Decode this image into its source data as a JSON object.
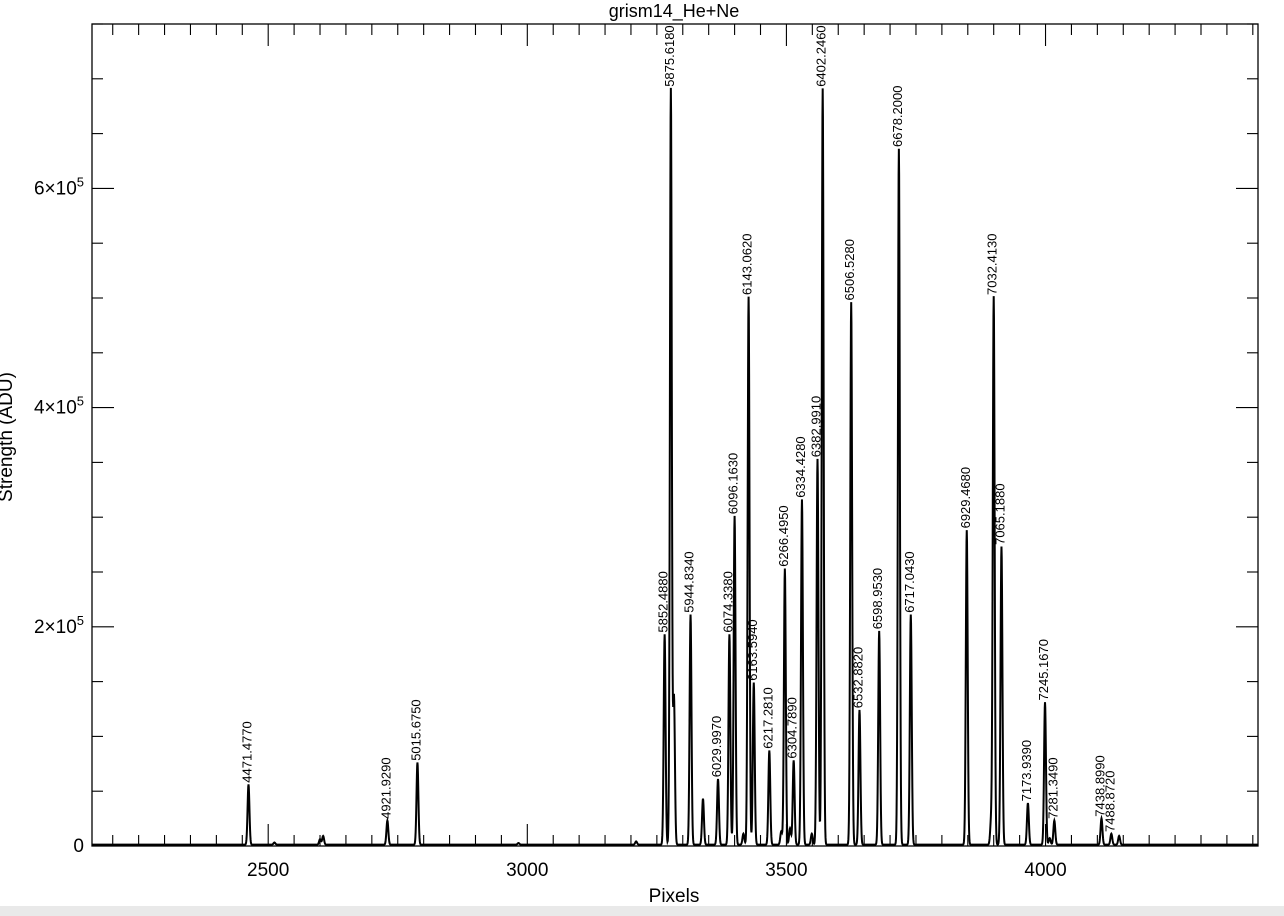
{
  "chart_data": {
    "type": "line",
    "title": "grism14_He+Ne",
    "xlabel": "Pixels",
    "ylabel": "Strength (ADU)",
    "xlim": [
      2160,
      4410
    ],
    "ylim": [
      0,
      750000
    ],
    "x_ticks": [
      {
        "value": 2500,
        "label": "2500"
      },
      {
        "value": 3000,
        "label": "3000"
      },
      {
        "value": 3500,
        "label": "3500"
      },
      {
        "value": 4000,
        "label": "4000"
      }
    ],
    "y_ticks": [
      {
        "value": 0,
        "label": "0",
        "exp": ""
      },
      {
        "value": 200000,
        "label": "2×10",
        "exp": "5"
      },
      {
        "value": 400000,
        "label": "4×10",
        "exp": "5"
      },
      {
        "value": 600000,
        "label": "6×10",
        "exp": "5"
      }
    ],
    "grid": false,
    "series": [
      {
        "lines": [
          {
            "x": 2462,
            "y": 55000,
            "label": "4471.4770"
          },
          {
            "x": 2730,
            "y": 22000,
            "label": "4921.9290"
          },
          {
            "x": 2788,
            "y": 75000,
            "label": "5015.6750"
          },
          {
            "x": 3265,
            "y": 192000,
            "label": "5852.4880"
          },
          {
            "x": 3277,
            "y": 690000,
            "label": "5875.6180"
          },
          {
            "x": 3315,
            "y": 210000,
            "label": "5944.8340"
          },
          {
            "x": 3368,
            "y": 60000,
            "label": "6029.9970"
          },
          {
            "x": 3390,
            "y": 192000,
            "label": "6074.3380"
          },
          {
            "x": 3400,
            "y": 300000,
            "label": "6096.1630"
          },
          {
            "x": 3427,
            "y": 500000,
            "label": "6143.0620"
          },
          {
            "x": 3437,
            "y": 148000,
            "label": "6163.5940"
          },
          {
            "x": 3467,
            "y": 86000,
            "label": "6217.2810"
          },
          {
            "x": 3497,
            "y": 252000,
            "label": "6266.4950"
          },
          {
            "x": 3514,
            "y": 77000,
            "label": "6304.7890"
          },
          {
            "x": 3530,
            "y": 315000,
            "label": "6334.4280"
          },
          {
            "x": 3560,
            "y": 352000,
            "label": "6382.9910"
          },
          {
            "x": 3570,
            "y": 690000,
            "label": "6402.2460"
          },
          {
            "x": 3625,
            "y": 495000,
            "label": "6506.5280"
          },
          {
            "x": 3641,
            "y": 123000,
            "label": "6532.8820"
          },
          {
            "x": 3679,
            "y": 195000,
            "label": "6598.9530"
          },
          {
            "x": 3717,
            "y": 635000,
            "label": "6678.2000"
          },
          {
            "x": 3740,
            "y": 210000,
            "label": "6717.0430"
          },
          {
            "x": 3848,
            "y": 287000,
            "label": "6929.4680"
          },
          {
            "x": 3900,
            "y": 500000,
            "label": "7032.4130"
          },
          {
            "x": 3915,
            "y": 272000,
            "label": "7065.1880"
          },
          {
            "x": 3966,
            "y": 38000,
            "label": "7173.9390"
          },
          {
            "x": 3999,
            "y": 130000,
            "label": "7245.1670"
          },
          {
            "x": 4017,
            "y": 22000,
            "label": "7281.3490"
          },
          {
            "x": 4108,
            "y": 24000,
            "label": "7438.8990"
          },
          {
            "x": 4127,
            "y": 10000,
            "label": "7488.8720"
          }
        ],
        "unlabeled_lines": [
          {
            "x": 2512,
            "y": 2000
          },
          {
            "x": 2600,
            "y": 5000
          },
          {
            "x": 2606,
            "y": 8000
          },
          {
            "x": 2983,
            "y": 1500
          },
          {
            "x": 3210,
            "y": 3000
          },
          {
            "x": 3283,
            "y": 135000
          },
          {
            "x": 3339,
            "y": 42000
          },
          {
            "x": 3417,
            "y": 10000
          },
          {
            "x": 3490,
            "y": 12000
          },
          {
            "x": 3507,
            "y": 15000
          },
          {
            "x": 3549,
            "y": 10000
          },
          {
            "x": 3895,
            "y": 22000
          },
          {
            "x": 4008,
            "y": 6000
          },
          {
            "x": 4142,
            "y": 8000
          }
        ]
      }
    ]
  }
}
